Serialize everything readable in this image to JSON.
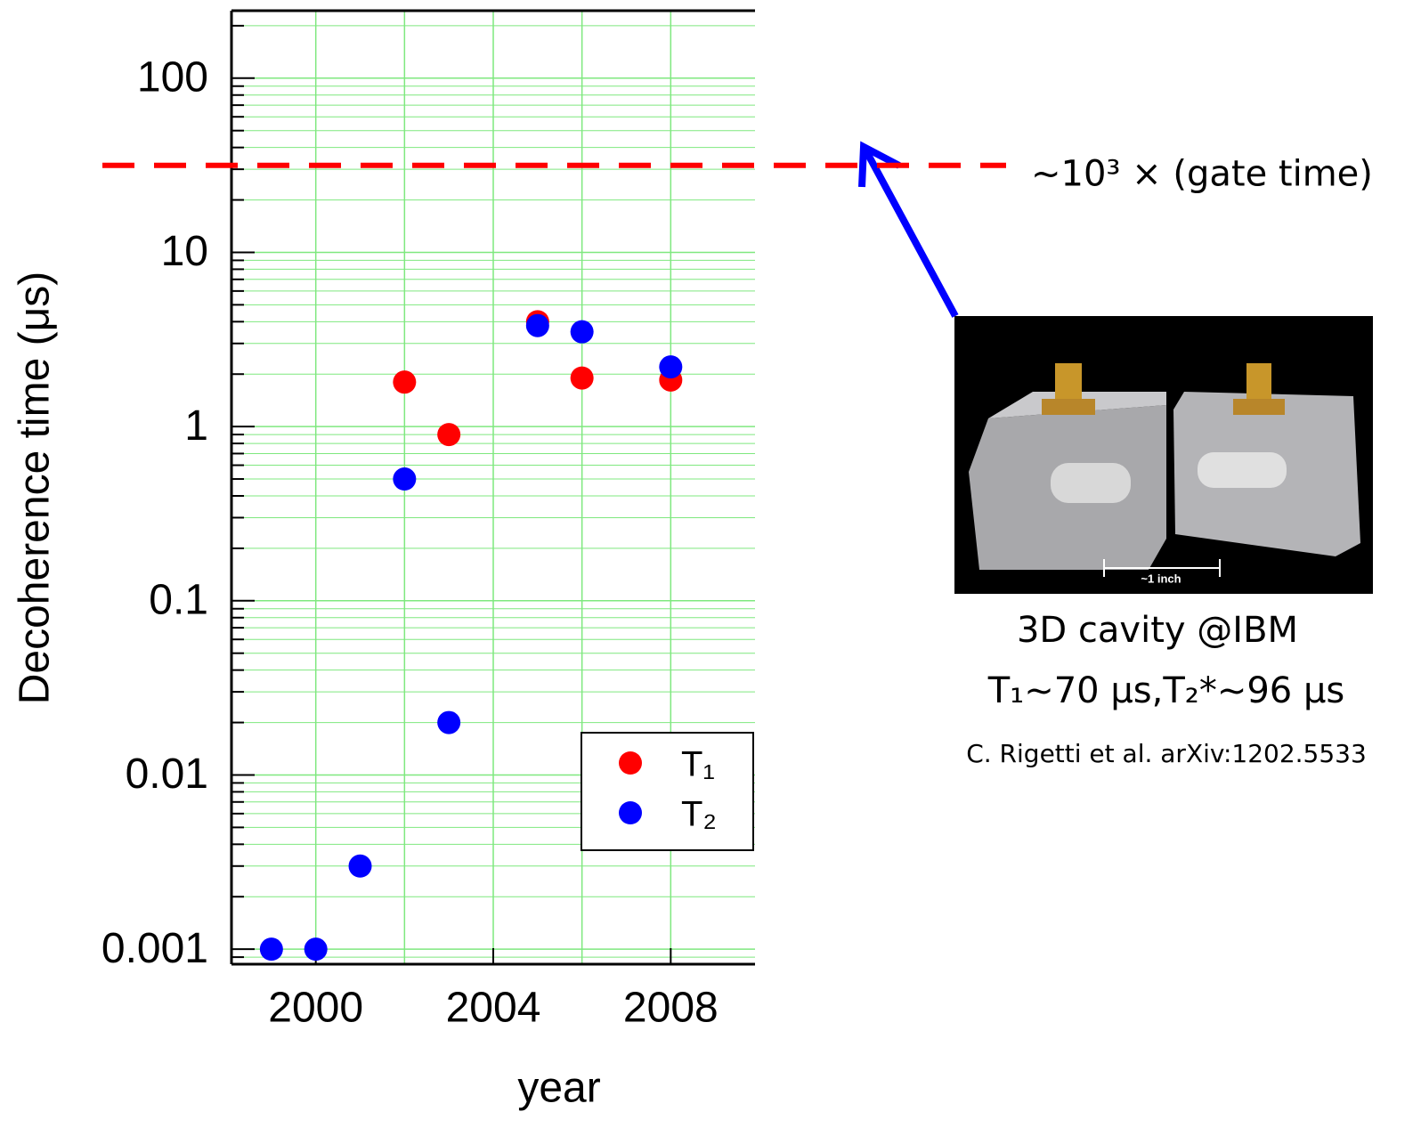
{
  "chart_data": {
    "type": "scatter",
    "xlabel": "year",
    "ylabel": "Decoherence time (μs)",
    "xlim": [
      1998.1,
      2009.9
    ],
    "xticks": [
      2000,
      2004,
      2008
    ],
    "xminorticks": [
      2002,
      2006
    ],
    "ylim": [
      0.00082,
      244
    ],
    "yticks": [
      0.001,
      0.01,
      0.1,
      1,
      10,
      100
    ],
    "log_y": true,
    "grid": true,
    "grid_color": "#7fe87f",
    "legend_position": "lower right",
    "series": [
      {
        "name": "T₁",
        "color": "#ff0000",
        "x": [
          2002,
          2003,
          2005,
          2006,
          2008
        ],
        "values": [
          1.8,
          0.9,
          4.0,
          1.9,
          1.85
        ]
      },
      {
        "name": "T₂",
        "color": "#0000ff",
        "x": [
          1999,
          2000,
          2001,
          2002,
          2003,
          2005,
          2006,
          2008
        ],
        "values": [
          0.001,
          0.001,
          0.003,
          0.5,
          0.02,
          3.8,
          3.5,
          2.2
        ]
      }
    ],
    "reference_line": {
      "value": 31.6,
      "label": "~10³ × (gate time)",
      "color": "#ff0000"
    },
    "annotations": [
      "3D cavity @IBM",
      "T₁~70 μs,T₂*~96 μs",
      "C. Rigetti et al. arXiv:1202.5533",
      "~1 inch"
    ]
  }
}
